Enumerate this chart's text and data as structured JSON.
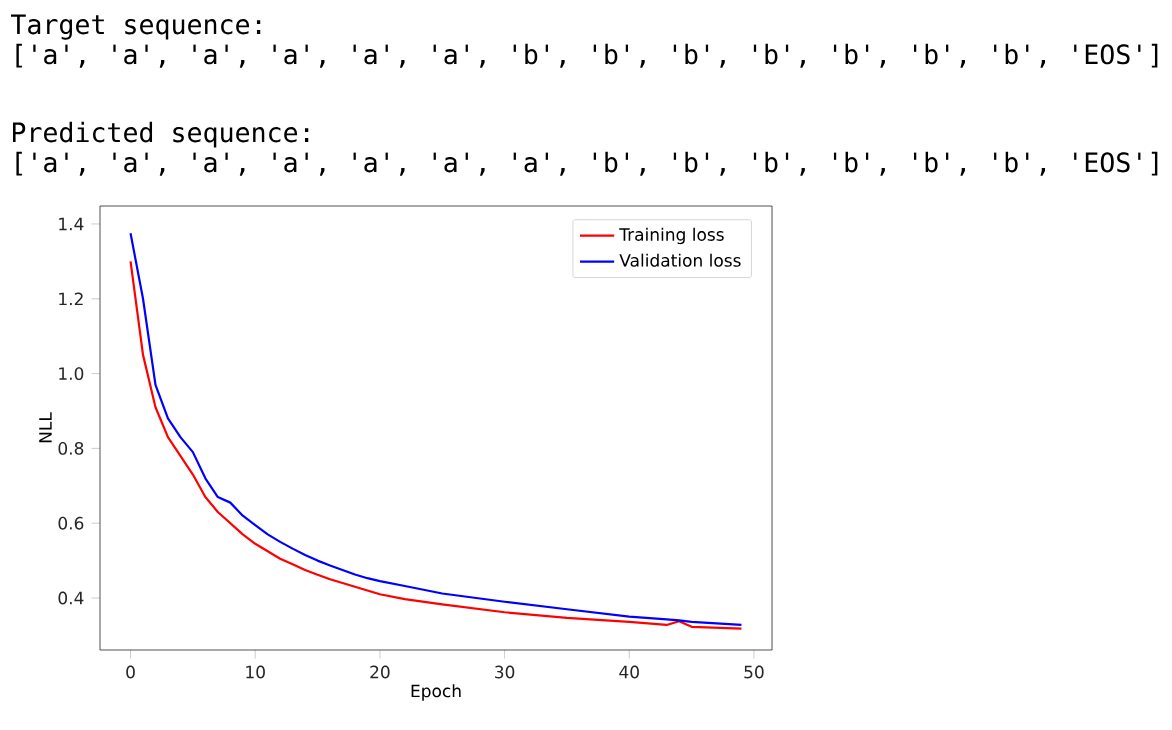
{
  "chart_data": {
    "type": "line",
    "xlabel": "Epoch",
    "ylabel": "NLL",
    "annotations": [
      "Target sequence:",
      "['a', 'a', 'a', 'a', 'a', 'a', 'b', 'b', 'b', 'b', 'b', 'b', 'b', 'EOS']",
      "Predicted sequence:",
      "['a', 'a', 'a', 'a', 'a', 'a', 'a', 'b', 'b', 'b', 'b', 'b', 'b', 'EOS']"
    ],
    "x": [
      0,
      1,
      2,
      3,
      4,
      5,
      6,
      7,
      8,
      9,
      10,
      11,
      12,
      13,
      14,
      15,
      16,
      17,
      18,
      19,
      20,
      22,
      25,
      30,
      35,
      40,
      43,
      44,
      45,
      49
    ],
    "series": [
      {
        "name": "Training loss",
        "color": "#ff0000",
        "values": [
          1.3,
          1.05,
          0.91,
          0.83,
          0.78,
          0.73,
          0.67,
          0.63,
          0.6,
          0.57,
          0.545,
          0.525,
          0.505,
          0.49,
          0.475,
          0.462,
          0.45,
          0.44,
          0.43,
          0.42,
          0.41,
          0.397,
          0.383,
          0.362,
          0.347,
          0.336,
          0.328,
          0.338,
          0.323,
          0.318
        ]
      },
      {
        "name": "Validation loss",
        "color": "#0000ff",
        "values": [
          1.375,
          1.2,
          0.97,
          0.88,
          0.83,
          0.79,
          0.72,
          0.67,
          0.655,
          0.62,
          0.595,
          0.57,
          0.55,
          0.532,
          0.515,
          0.5,
          0.487,
          0.475,
          0.463,
          0.453,
          0.445,
          0.432,
          0.412,
          0.39,
          0.37,
          0.35,
          0.343,
          0.34,
          0.336,
          0.328
        ]
      }
    ],
    "xlim": [
      -2.45,
      51.45
    ],
    "ylim": [
      0.261,
      1.448
    ],
    "xticks": [
      0,
      10,
      20,
      30,
      40,
      50
    ],
    "yticks": [
      {
        "value": 0.4,
        "label": "0.4"
      },
      {
        "value": 0.6,
        "label": "0.6"
      },
      {
        "value": 0.8,
        "label": "0.8"
      },
      {
        "value": 1.0,
        "label": "1.0"
      },
      {
        "value": 1.2,
        "label": "1.2"
      },
      {
        "value": 1.4,
        "label": "1.4"
      }
    ],
    "legend": "top right",
    "grid": false,
    "marker": "none",
    "line_style": "solid"
  }
}
